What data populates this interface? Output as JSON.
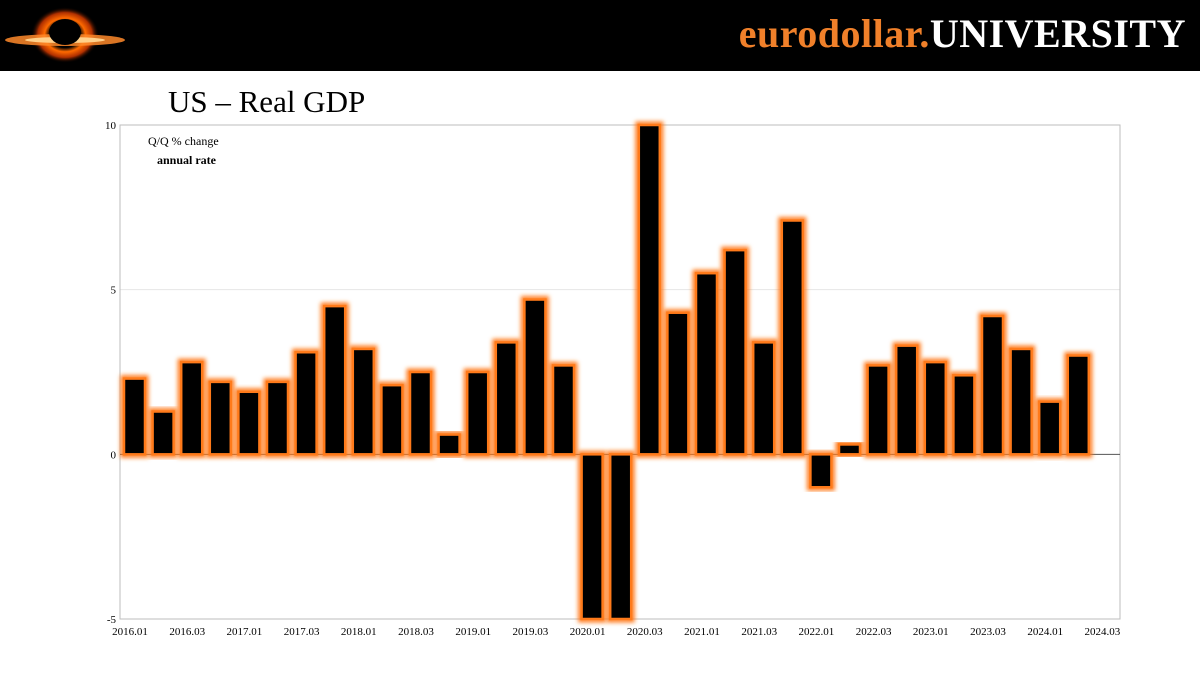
{
  "header": {
    "brand_part1": "eurodollar.",
    "brand_part2": "UNIVERSITY",
    "logo_icon": "black-hole-logo-icon"
  },
  "colors": {
    "header_bg": "#000000",
    "accent": "#f0802a",
    "bar_fill": "#000000",
    "bar_glow": "#ff7a1a",
    "grid": "#e6e6e6"
  },
  "chart_data": {
    "type": "bar",
    "title": "US – Real GDP",
    "annotation_line1": "Q/Q % change",
    "annotation_line2": "annual rate",
    "ylim": [
      -5,
      10
    ],
    "yticks": [
      -5,
      0,
      5,
      10
    ],
    "grid": true,
    "legend": "none",
    "xtick_labels": [
      "2016.01",
      "2016.03",
      "2017.01",
      "2017.03",
      "2018.01",
      "2018.03",
      "2019.01",
      "2019.03",
      "2020.01",
      "2020.03",
      "2021.01",
      "2021.03",
      "2022.01",
      "2022.03",
      "2023.01",
      "2023.03",
      "2024.01",
      "2024.03"
    ],
    "series": [
      {
        "x": [
          "2016.01",
          "2016.02",
          "2016.03",
          "2016.04",
          "2017.01",
          "2017.02",
          "2017.03",
          "2017.04",
          "2018.01",
          "2018.02",
          "2018.03",
          "2018.04",
          "2019.01",
          "2019.02",
          "2019.03",
          "2019.04",
          "2020.01",
          "2020.02",
          "2020.03",
          "2020.04",
          "2021.01",
          "2021.02",
          "2021.03",
          "2021.04",
          "2022.01",
          "2022.02",
          "2022.03",
          "2022.04",
          "2023.01",
          "2023.02",
          "2023.03",
          "2023.04",
          "2024.01",
          "2024.02"
        ],
        "values": [
          2.3,
          1.3,
          2.8,
          2.2,
          1.9,
          2.2,
          3.1,
          4.5,
          3.2,
          2.1,
          2.5,
          0.6,
          2.5,
          3.4,
          4.7,
          2.7,
          -5.0,
          -5.0,
          10.0,
          4.3,
          5.5,
          6.2,
          3.4,
          7.1,
          -1.0,
          0.3,
          2.7,
          3.3,
          2.8,
          2.4,
          4.2,
          3.2,
          1.6,
          3.0
        ]
      }
    ]
  }
}
